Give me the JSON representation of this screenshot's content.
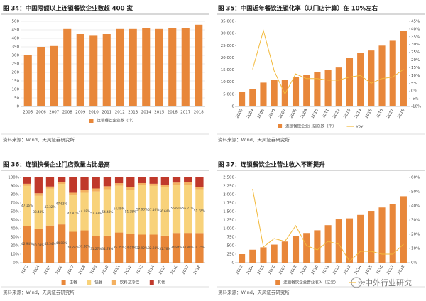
{
  "chart_data": [
    {
      "type": "bar",
      "title": "图 34：中国限额以上连锁餐饮企业数超 400 家",
      "source": "资料来源：Wind，天风证券研究所",
      "categories": [
        "2005",
        "2006",
        "2007",
        "2008",
        "2009",
        "2010",
        "2011",
        "2012",
        "2013",
        "2014",
        "2015",
        "2016",
        "2017",
        "2018"
      ],
      "series": [
        {
          "name": "连锁餐饮企业数（个）",
          "color": "#e8873a",
          "values": [
            300,
            350,
            355,
            455,
            425,
            415,
            425,
            455,
            455,
            460,
            455,
            460,
            460,
            480
          ]
        }
      ],
      "ylim": [
        0,
        500
      ],
      "yticks": [
        0,
        50,
        100,
        150,
        200,
        250,
        300,
        350,
        400,
        450,
        500
      ],
      "grid": true
    },
    {
      "type": "combo",
      "title": "图 35：中国近年餐饮连锁化率（以门店计算）在 10%左右",
      "source": "资料来源：Wind，天风证券研究所",
      "categories": [
        "2003",
        "2004",
        "2005",
        "2006",
        "2007",
        "2008",
        "2009",
        "2010",
        "2011",
        "2012",
        "2013",
        "2014",
        "2015",
        "2016",
        "2017",
        "2018"
      ],
      "series": [
        {
          "name": "连锁餐饮企业门店总数（个）",
          "color": "#e8873a",
          "values": [
            6000,
            7000,
            9800,
            11000,
            10800,
            12000,
            13000,
            14000,
            15000,
            16000,
            20000,
            22000,
            23000,
            25000,
            27000,
            31000
          ]
        },
        {
          "name": "yoy",
          "color": "#f2b93b",
          "axis": "y2",
          "values": [
            null,
            14,
            39,
            13,
            -2,
            11,
            8,
            8,
            7,
            7,
            9,
            10,
            5,
            8,
            9,
            14
          ]
        }
      ],
      "ylim": [
        0,
        35000
      ],
      "yticks": [
        0,
        {
          "value": 5000,
          "label": "5,000"
        },
        {
          "value": 10000,
          "label": "10,000"
        },
        {
          "value": 15000,
          "label": "15,000"
        },
        {
          "value": 20000,
          "label": "20,000"
        },
        {
          "value": 25000,
          "label": "25,000"
        },
        {
          "value": 30000,
          "label": "30,000"
        },
        {
          "value": 35000,
          "label": "35,000"
        }
      ],
      "y2lim": [
        -10,
        45
      ],
      "y2ticks": [
        {
          "value": -10,
          "label": "-10%"
        },
        {
          "value": -5,
          "label": "-5%"
        },
        {
          "value": 0,
          "label": "0%"
        },
        {
          "value": 5,
          "label": "5%"
        },
        {
          "value": 10,
          "label": "10%"
        },
        {
          "value": 15,
          "label": "15%"
        },
        {
          "value": 20,
          "label": "20%"
        },
        {
          "value": 25,
          "label": "25%"
        },
        {
          "value": 30,
          "label": "30%"
        },
        {
          "value": 35,
          "label": "35%"
        },
        {
          "value": 40,
          "label": "40%"
        },
        {
          "value": 45,
          "label": "45%"
        }
      ],
      "grid": false
    },
    {
      "type": "stacked_bar",
      "title": "图 36：连锁快餐企业门店数量占比最高",
      "source": "资料来源：Wind，天风证券研究所",
      "categories": [
        "2003",
        "2004",
        "2005",
        "2006",
        "2007",
        "2008",
        "2009",
        "2010",
        "2011",
        "2012",
        "2013",
        "2014",
        "2015",
        "2016",
        "2017",
        "2018"
      ],
      "series": [
        {
          "name": "正餐",
          "color": "#e8873a",
          "values": [
            42.94,
            40.03,
            43.54,
            44.88,
            36.24,
            37.88,
            31.27,
            31.73,
            35.35,
            34.07,
            32.92,
            32.94,
            31.76,
            34.84,
            34.88,
            34.75
          ],
          "value_labels": [
            "42.94%",
            "40.03%",
            "43.54%",
            "44.88%",
            "36.24%",
            "37.88%",
            "31.27%",
            "31.73%",
            "35.35%",
            "34.07%",
            "32.92%",
            "32.94%",
            "31.76%",
            "34.84%",
            "34.88%",
            "34.75%"
          ]
        },
        {
          "name": "快餐",
          "color": "#f8d27a",
          "values": [
            47.16,
            38.43,
            43.32,
            47.63,
            42.87,
            44.18,
            52.33,
            54.48,
            54.89,
            51.38,
            57.93,
            57.16,
            56.64,
            56.66,
            56.77,
            51.38
          ],
          "value_labels": [
            "47.16%",
            "38.43%",
            "43.32%",
            "47.63%",
            "42.87%",
            "44.18%",
            "52.33%",
            "54.48%",
            "54.89%",
            "51.38%",
            "57.93%",
            "57.16%",
            "56.64%",
            "56.66%",
            "56.77%",
            "51.38%"
          ]
        },
        {
          "name": "饮料及冷饮",
          "color": "#f3b060",
          "values": [
            2.5,
            3,
            2.5,
            2,
            3,
            3,
            3.5,
            3.5,
            3,
            3,
            2.5,
            2.5,
            3,
            2.5,
            2.5,
            3
          ]
        },
        {
          "name": "其他",
          "color": "#c0392b",
          "values": [
            7.4,
            18.54,
            10.64,
            5.49,
            17.89,
            14.94,
            12.9,
            10.29,
            6.76,
            11.55,
            6.65,
            7.4,
            8.6,
            6.0,
            5.85,
            10.87
          ]
        }
      ],
      "ylim": [
        0,
        100
      ],
      "yticks": [
        {
          "value": 0,
          "label": "0%"
        },
        {
          "value": 10,
          "label": "10%"
        },
        {
          "value": 20,
          "label": "20%"
        },
        {
          "value": 30,
          "label": "30%"
        },
        {
          "value": 40,
          "label": "40%"
        },
        {
          "value": 50,
          "label": "50%"
        },
        {
          "value": 60,
          "label": "60%"
        },
        {
          "value": 70,
          "label": "70%"
        },
        {
          "value": 80,
          "label": "80%"
        },
        {
          "value": 90,
          "label": "90%"
        },
        {
          "value": 100,
          "label": "100%"
        }
      ],
      "grid": false
    },
    {
      "type": "combo",
      "title": "图 37：连锁餐饮企业营业收入不断提升",
      "source": "资料来源：Wind，天风证券研究所",
      "categories": [
        "2003",
        "2004",
        "2005",
        "2006",
        "2007",
        "2008",
        "2009",
        "2010",
        "2011",
        "2012",
        "2013",
        "2014",
        "2015",
        "2016",
        "2017",
        "2018"
      ],
      "series": [
        {
          "name": "连锁餐饮企业营业收入（亿元）",
          "color": "#e8873a",
          "values": [
            250,
            380,
            450,
            530,
            620,
            780,
            870,
            950,
            1100,
            1270,
            1300,
            1400,
            1520,
            1620,
            1720,
            1950
          ]
        },
        {
          "name": "yoy",
          "color": "#f2b93b",
          "axis": "y2",
          "values": [
            null,
            52,
            11,
            17,
            15,
            26,
            12,
            9,
            15,
            13,
            1,
            8,
            8,
            6,
            6,
            13
          ]
        }
      ],
      "ylim": [
        0,
        2500
      ],
      "yticks": [
        0,
        250,
        500,
        750,
        {
          "value": 1000,
          "label": "1,000"
        },
        {
          "value": 1250,
          "label": "1,250"
        },
        {
          "value": 1500,
          "label": "1,500"
        },
        {
          "value": 1750,
          "label": "1,750"
        },
        {
          "value": 2000,
          "label": "2,000"
        },
        {
          "value": 2250,
          "label": "2,250"
        },
        {
          "value": 2500,
          "label": "2,500"
        }
      ],
      "y2lim": [
        0,
        60
      ],
      "y2ticks": [
        {
          "value": 0,
          "label": "0%"
        },
        {
          "value": 10,
          "label": "10%"
        },
        {
          "value": 20,
          "label": "20%"
        },
        {
          "value": 30,
          "label": "30%"
        },
        {
          "value": 40,
          "label": "40%"
        },
        {
          "value": 50,
          "label": "50%"
        },
        {
          "value": 60,
          "label": "60%"
        }
      ],
      "grid": false
    }
  ],
  "watermark": "中外行业研究"
}
